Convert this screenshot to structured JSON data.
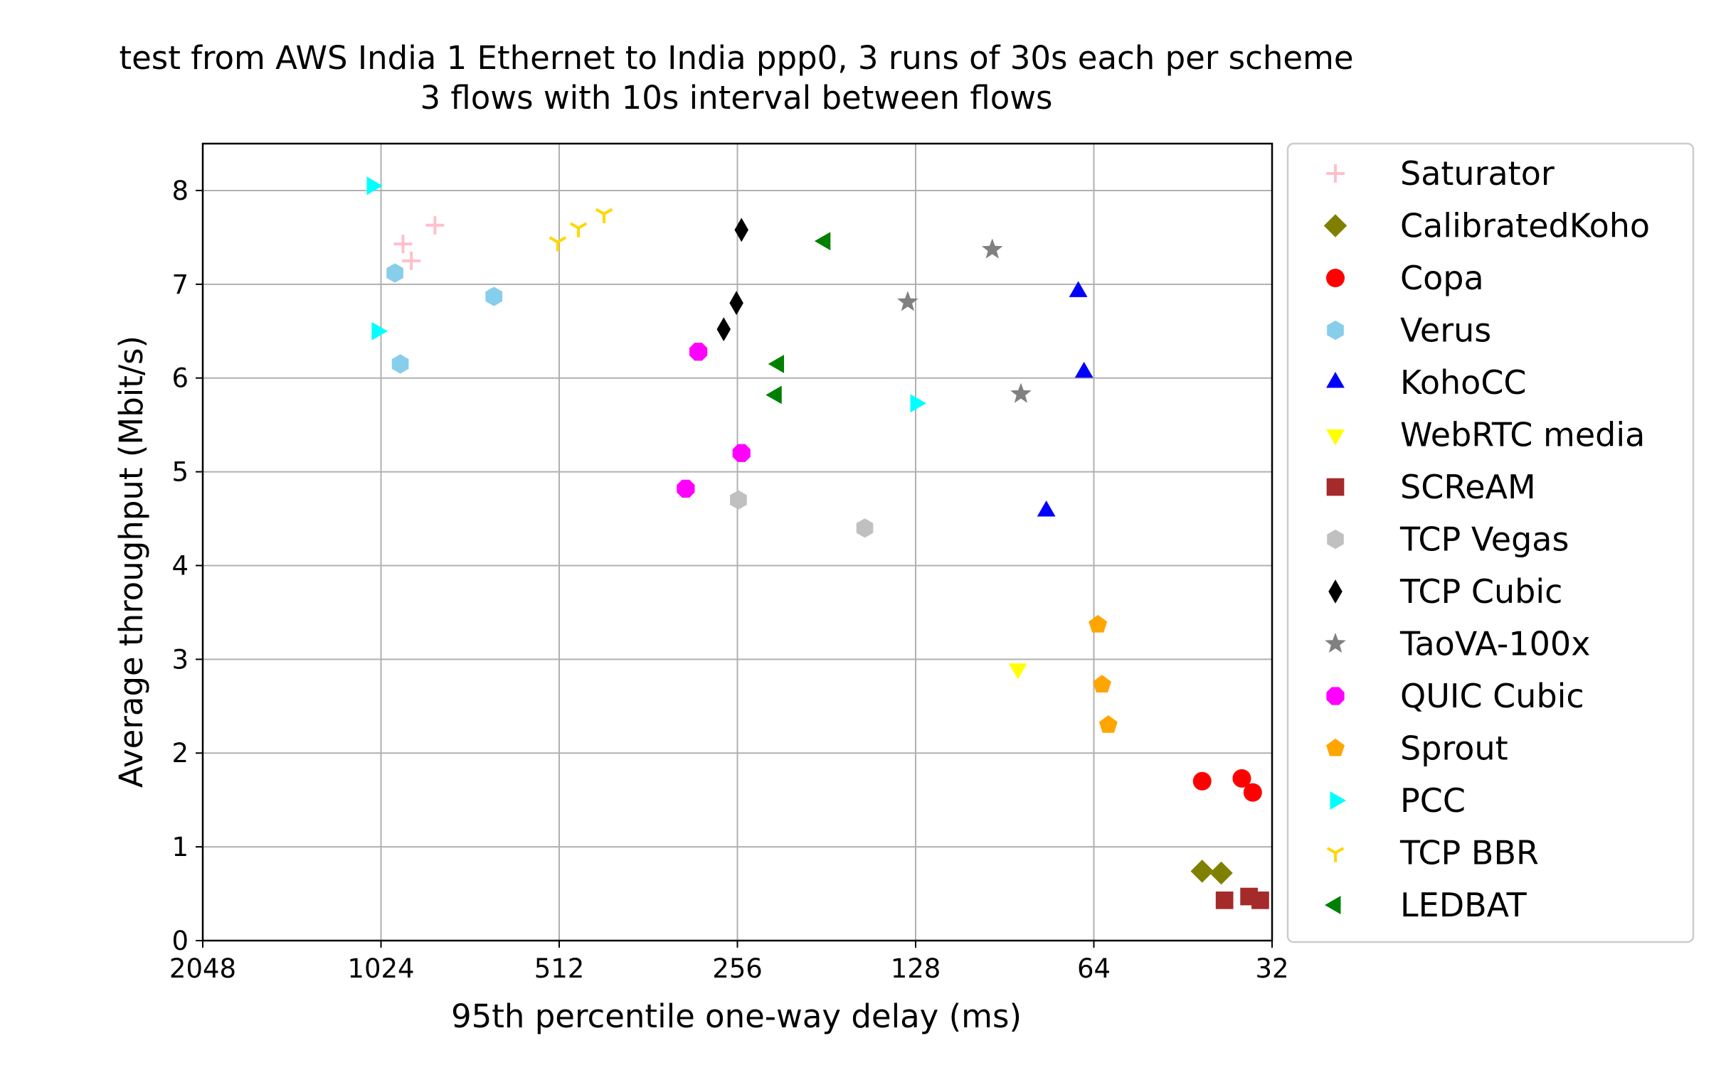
{
  "chart_data": {
    "type": "scatter",
    "title": [
      "test from AWS India 1 Ethernet to India ppp0, 3 runs of 30s each per scheme",
      "3 flows with 10s interval between flows"
    ],
    "xlabel": "95th percentile one-way delay (ms)",
    "ylabel": "Average throughput (Mbit/s)",
    "x_scale": "log2",
    "x_inverted": true,
    "xlim": [
      2048,
      32
    ],
    "ylim": [
      0,
      8.5
    ],
    "x_ticks": [
      2048,
      1024,
      512,
      256,
      128,
      64,
      32
    ],
    "y_ticks": [
      0,
      1,
      2,
      3,
      4,
      5,
      6,
      7,
      8
    ],
    "grid": true,
    "legend_position": "outside-right",
    "series": [
      {
        "name": "Saturator",
        "color": "#ffc0cb",
        "marker": "plus",
        "points": [
          [
            940,
            7.43
          ],
          [
            910,
            7.25
          ],
          [
            830,
            7.63
          ]
        ]
      },
      {
        "name": "CalibratedKoho",
        "color": "#808000",
        "marker": "diamond",
        "points": [
          [
            42,
            0.74
          ],
          [
            39,
            0.72
          ]
        ]
      },
      {
        "name": "Copa",
        "color": "#ff0000",
        "marker": "circle",
        "points": [
          [
            42,
            1.7
          ],
          [
            36,
            1.73
          ],
          [
            34.5,
            1.58
          ]
        ]
      },
      {
        "name": "Verus",
        "color": "#87ceeb",
        "marker": "hexagon",
        "points": [
          [
            970,
            7.12
          ],
          [
            950,
            6.15
          ],
          [
            660,
            6.87
          ]
        ]
      },
      {
        "name": "KohoCC",
        "color": "#0000ff",
        "marker": "triangle-up",
        "points": [
          [
            68,
            6.92
          ],
          [
            66.5,
            6.06
          ],
          [
            77,
            4.58
          ]
        ]
      },
      {
        "name": "WebRTC media",
        "color": "#ffff00",
        "marker": "triangle-down",
        "points": [
          [
            86,
            2.9
          ]
        ]
      },
      {
        "name": "SCReAM",
        "color": "#a52a2a",
        "marker": "square",
        "points": [
          [
            38.5,
            0.43
          ],
          [
            35,
            0.47
          ],
          [
            33.5,
            0.43
          ]
        ]
      },
      {
        "name": "TCP Vegas",
        "color": "#c0c0c0",
        "marker": "hexagon",
        "points": [
          [
            255,
            4.7
          ],
          [
            156,
            4.4
          ]
        ]
      },
      {
        "name": "TCP Cubic",
        "color": "#000000",
        "marker": "thin-diamond",
        "points": [
          [
            252,
            7.58
          ],
          [
            257,
            6.8
          ],
          [
            270,
            6.52
          ]
        ]
      },
      {
        "name": "TaoVA-100x",
        "color": "#808080",
        "marker": "star",
        "points": [
          [
            95,
            7.37
          ],
          [
            132,
            6.81
          ],
          [
            85,
            5.83
          ]
        ]
      },
      {
        "name": "QUIC Cubic",
        "color": "#ff00ff",
        "marker": "octagon",
        "points": [
          [
            298,
            6.28
          ],
          [
            252,
            5.2
          ],
          [
            313,
            4.82
          ]
        ]
      },
      {
        "name": "Sprout",
        "color": "#ffa500",
        "marker": "pentagon",
        "points": [
          [
            63,
            3.37
          ],
          [
            62,
            2.73
          ],
          [
            60.5,
            2.3
          ]
        ]
      },
      {
        "name": "PCC",
        "color": "#00ffff",
        "marker": "triangle-right",
        "points": [
          [
            1060,
            8.05
          ],
          [
            1040,
            6.5
          ],
          [
            128,
            5.73
          ]
        ]
      },
      {
        "name": "TCP BBR",
        "color": "#ffd700",
        "marker": "tri-down",
        "points": [
          [
            515,
            7.45
          ],
          [
            475,
            7.6
          ],
          [
            430,
            7.75
          ]
        ]
      },
      {
        "name": "LEDBAT",
        "color": "#008000",
        "marker": "triangle-left",
        "points": [
          [
            182,
            7.46
          ],
          [
            218,
            6.15
          ],
          [
            220,
            5.82
          ]
        ]
      }
    ]
  }
}
